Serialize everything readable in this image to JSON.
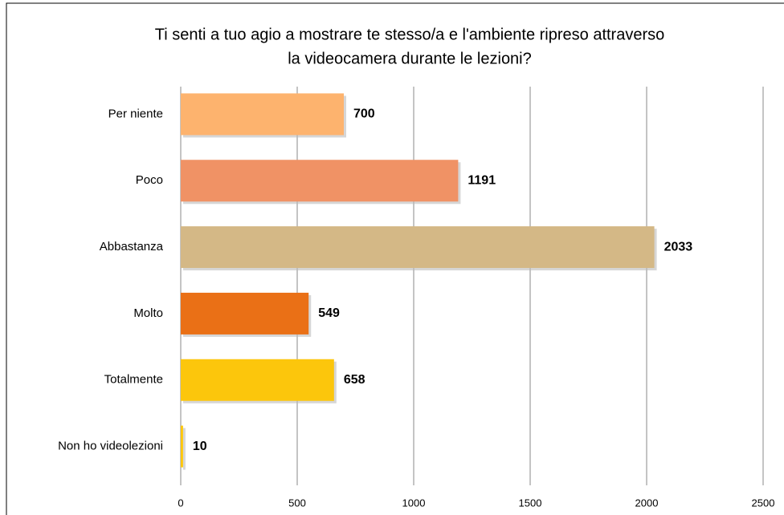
{
  "chart_data": {
    "type": "barh",
    "title": [
      "Ti senti a tuo agio a mostrare te stesso/a e l'ambiente ripreso attraverso",
      "la videocamera durante le lezioni?"
    ],
    "categories": [
      "Per niente",
      "Poco",
      "Abbastanza",
      "Molto",
      "Totalmente",
      "Non ho videolezioni"
    ],
    "values": [
      700,
      1191,
      2033,
      549,
      658,
      10
    ],
    "colors": [
      "#fdb36e",
      "#f09265",
      "#d4b886",
      "#ea7016",
      "#fcc60c",
      "#fcc60c"
    ],
    "xlim": [
      0,
      2500
    ],
    "xticks": [
      0,
      500,
      1000,
      1500,
      2000,
      2500
    ],
    "grid": true
  }
}
